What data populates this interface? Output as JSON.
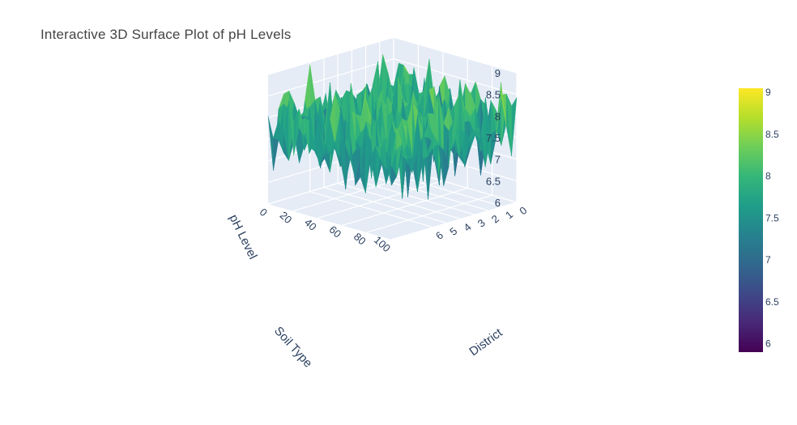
{
  "chart_data": {
    "type": "surface",
    "title": "Interactive 3D Surface Plot of pH Levels",
    "xlabel": "District",
    "ylabel": "Soil Type",
    "zlabel": "pH Level",
    "x_ticks": [
      "0",
      "1",
      "2",
      "3",
      "4",
      "5",
      "6"
    ],
    "y_ticks": [
      "0",
      "20",
      "40",
      "60",
      "80",
      "100"
    ],
    "z_ticks": [
      "6",
      "6.5",
      "7",
      "7.5",
      "8",
      "8.5",
      "9"
    ],
    "xlim": [
      0,
      9
    ],
    "ylim": [
      0,
      100
    ],
    "zlim": [
      6,
      9
    ],
    "colorscale": "Viridis",
    "colorbar": {
      "range": [
        5.9,
        9.05
      ],
      "ticks": [
        "6",
        "6.5",
        "7",
        "7.5",
        "8",
        "8.5",
        "9"
      ]
    },
    "scene_background": "#e5ecf6"
  }
}
